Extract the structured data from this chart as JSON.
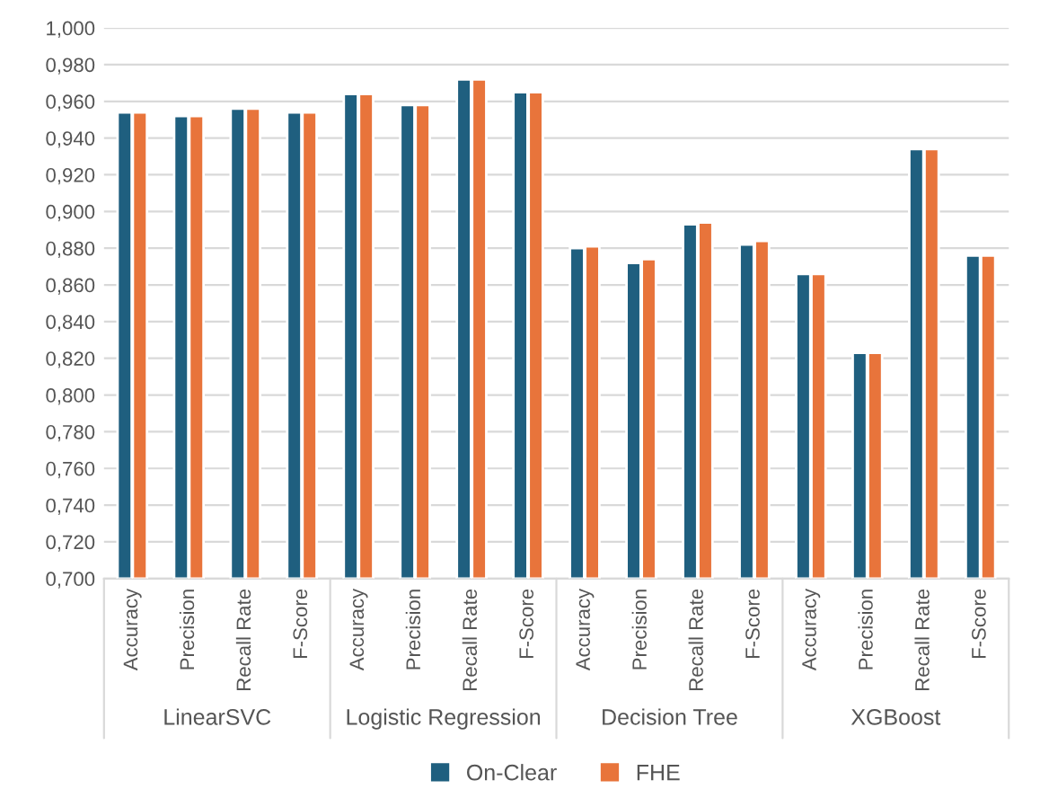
{
  "chart_data": {
    "type": "bar",
    "categories": [
      "Accuracy",
      "Precision",
      "Recall Rate",
      "F-Score",
      "Accuracy",
      "Precision",
      "Recall Rate",
      "F-Score",
      "Accuracy",
      "Precision",
      "Recall Rate",
      "F-Score",
      "Accuracy",
      "Precision",
      "Recall Rate",
      "F-Score"
    ],
    "series": [
      {
        "name": "On-Clear",
        "color": "#1f5f7f",
        "values": [
          0.954,
          0.952,
          0.956,
          0.954,
          0.964,
          0.958,
          0.972,
          0.965,
          0.88,
          0.872,
          0.893,
          0.882,
          0.866,
          0.823,
          0.934,
          0.876
        ]
      },
      {
        "name": "FHE",
        "color": "#e8743b",
        "values": [
          0.954,
          0.952,
          0.956,
          0.954,
          0.964,
          0.958,
          0.972,
          0.965,
          0.881,
          0.874,
          0.894,
          0.884,
          0.866,
          0.823,
          0.934,
          0.876
        ]
      }
    ],
    "annotations": [
      "LinearSVC",
      "Logistic Regression",
      "Decision Tree",
      "XGBoost"
    ],
    "ylim": [
      0.7,
      1.0
    ],
    "yticks": [
      {
        "value": 0.7,
        "label": "0,700"
      },
      {
        "value": 0.72,
        "label": "0,720"
      },
      {
        "value": 0.74,
        "label": "0,740"
      },
      {
        "value": 0.76,
        "label": "0,760"
      },
      {
        "value": 0.78,
        "label": "0,780"
      },
      {
        "value": 0.8,
        "label": "0,800"
      },
      {
        "value": 0.82,
        "label": "0,820"
      },
      {
        "value": 0.84,
        "label": "0,840"
      },
      {
        "value": 0.86,
        "label": "0,860"
      },
      {
        "value": 0.88,
        "label": "0,880"
      },
      {
        "value": 0.9,
        "label": "0,900"
      },
      {
        "value": 0.92,
        "label": "0,920"
      },
      {
        "value": 0.94,
        "label": "0,940"
      },
      {
        "value": 0.96,
        "label": "0,960"
      },
      {
        "value": 0.98,
        "label": "0,980"
      },
      {
        "value": 1.0,
        "label": "1,000"
      }
    ],
    "grid": "y",
    "legend": "bottom"
  }
}
